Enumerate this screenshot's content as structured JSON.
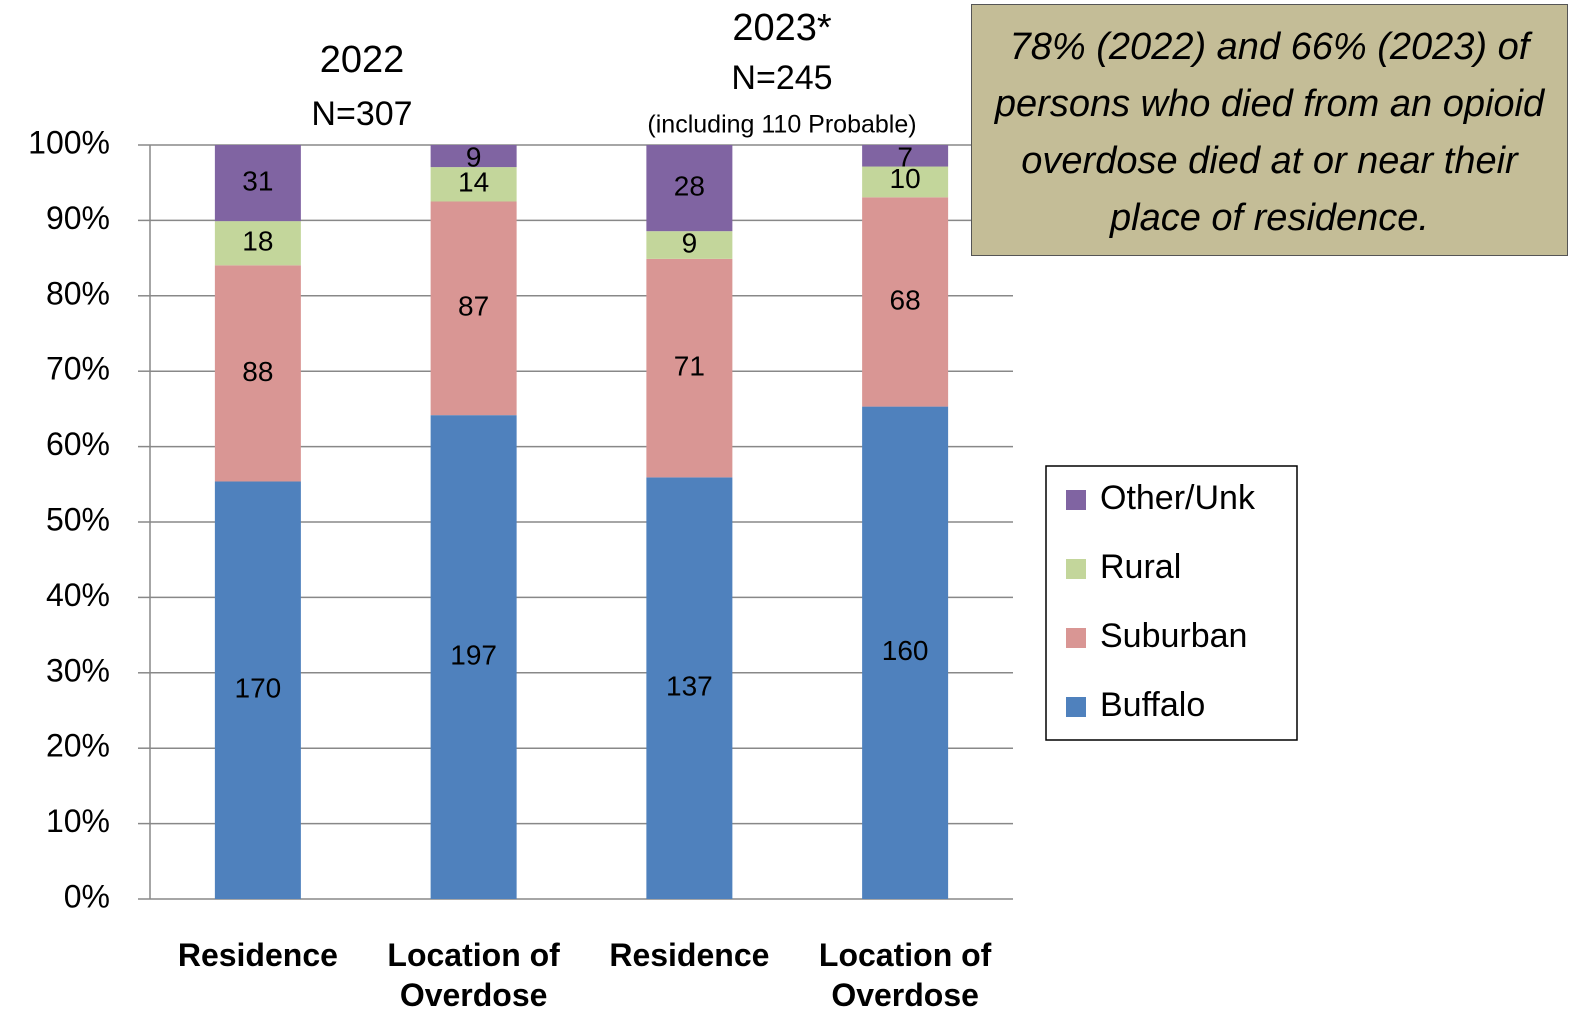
{
  "chart_data": {
    "type": "bar",
    "stacking": "percent",
    "categories": [
      "Residence",
      "Location of Overdose",
      "Residence",
      "Location of Overdose"
    ],
    "groups": [
      {
        "year": "2022",
        "n": "N=307"
      },
      {
        "year": "2023*",
        "n": "N=245",
        "note": "(including 110 Probable)"
      }
    ],
    "series": [
      {
        "name": "Buffalo",
        "color": "#4f81bd",
        "values": [
          170,
          197,
          137,
          160
        ]
      },
      {
        "name": "Suburban",
        "color": "#d99694",
        "values": [
          88,
          87,
          71,
          68
        ]
      },
      {
        "name": "Rural",
        "color": "#c3d69b",
        "values": [
          18,
          14,
          9,
          10
        ]
      },
      {
        "name": "Other/Unk",
        "color": "#8064a2",
        "values": [
          31,
          9,
          28,
          7
        ]
      }
    ],
    "ylim": [
      0,
      100
    ],
    "yticks": [
      {
        "value": 0,
        "label": "0%"
      },
      {
        "value": 10,
        "label": "10%"
      },
      {
        "value": 20,
        "label": "20%"
      },
      {
        "value": 30,
        "label": "30%"
      },
      {
        "value": 40,
        "label": "40%"
      },
      {
        "value": 50,
        "label": "50%"
      },
      {
        "value": 60,
        "label": "60%"
      },
      {
        "value": 70,
        "label": "70%"
      },
      {
        "value": 80,
        "label": "80%"
      },
      {
        "value": 90,
        "label": "90%"
      },
      {
        "value": 100,
        "label": "100%"
      }
    ],
    "grid": true,
    "legend": "right",
    "annotation": "78% (2022) and 66% (2023) of persons who died from an opioid overdose died at or near their place of residence."
  }
}
